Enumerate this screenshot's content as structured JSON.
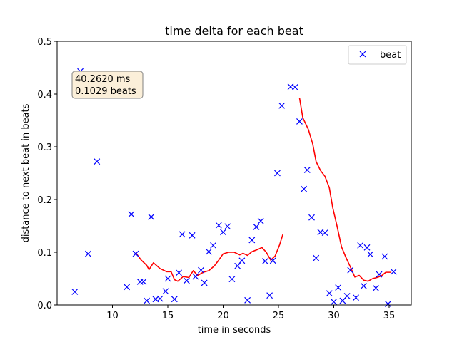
{
  "chart_data": {
    "type": "scatter",
    "title": "time delta for each beat",
    "xlabel": "time in seconds",
    "ylabel": "distance to next beat in beats",
    "xlim": [
      5.0,
      37.0
    ],
    "ylim": [
      0.0,
      0.5
    ],
    "xticks": [
      10,
      15,
      20,
      25,
      30,
      35
    ],
    "xtick_labels": [
      "10",
      "15",
      "20",
      "25",
      "30",
      "35"
    ],
    "yticks": [
      0.0,
      0.1,
      0.2,
      0.3,
      0.4,
      0.5
    ],
    "ytick_labels": [
      "0.0",
      "0.1",
      "0.2",
      "0.3",
      "0.4",
      "0.5"
    ],
    "grid": false,
    "legend": {
      "position": "top-right",
      "entries": [
        "beat"
      ]
    },
    "annotation": {
      "line1": "40.2620 ms",
      "line2": "0.1029 beats",
      "position": "top-left"
    },
    "series": [
      {
        "name": "beat",
        "kind": "scatter",
        "marker": "x",
        "color": "#0000ff",
        "points": [
          [
            6.6,
            0.025
          ],
          [
            7.1,
            0.443
          ],
          [
            7.8,
            0.097
          ],
          [
            8.6,
            0.272
          ],
          [
            11.3,
            0.034
          ],
          [
            11.7,
            0.172
          ],
          [
            12.1,
            0.097
          ],
          [
            12.5,
            0.044
          ],
          [
            12.8,
            0.044
          ],
          [
            13.1,
            0.008
          ],
          [
            13.5,
            0.167
          ],
          [
            13.9,
            0.011
          ],
          [
            14.3,
            0.012
          ],
          [
            14.8,
            0.026
          ],
          [
            15.0,
            0.05
          ],
          [
            15.6,
            0.011
          ],
          [
            16.0,
            0.061
          ],
          [
            16.3,
            0.134
          ],
          [
            16.7,
            0.046
          ],
          [
            17.2,
            0.132
          ],
          [
            17.5,
            0.054
          ],
          [
            18.0,
            0.066
          ],
          [
            18.3,
            0.042
          ],
          [
            18.7,
            0.101
          ],
          [
            19.1,
            0.113
          ],
          [
            19.6,
            0.151
          ],
          [
            20.0,
            0.138
          ],
          [
            20.4,
            0.149
          ],
          [
            20.8,
            0.049
          ],
          [
            21.3,
            0.074
          ],
          [
            21.7,
            0.084
          ],
          [
            22.2,
            0.009
          ],
          [
            22.6,
            0.123
          ],
          [
            23.0,
            0.148
          ],
          [
            23.4,
            0.159
          ],
          [
            23.8,
            0.083
          ],
          [
            24.2,
            0.018
          ],
          [
            24.5,
            0.084
          ],
          [
            24.9,
            0.25
          ],
          [
            25.3,
            0.378
          ],
          [
            26.1,
            0.414
          ],
          [
            26.5,
            0.413
          ],
          [
            26.9,
            0.348
          ],
          [
            27.3,
            0.22
          ],
          [
            27.6,
            0.256
          ],
          [
            28.0,
            0.166
          ],
          [
            28.4,
            0.089
          ],
          [
            28.8,
            0.138
          ],
          [
            29.2,
            0.137
          ],
          [
            29.6,
            0.022
          ],
          [
            30.0,
            0.006
          ],
          [
            30.4,
            0.033
          ],
          [
            30.8,
            0.008
          ],
          [
            31.2,
            0.017
          ],
          [
            31.5,
            0.066
          ],
          [
            32.0,
            0.014
          ],
          [
            32.4,
            0.113
          ],
          [
            32.7,
            0.036
          ],
          [
            33.0,
            0.109
          ],
          [
            33.3,
            0.096
          ],
          [
            33.8,
            0.032
          ],
          [
            34.1,
            0.058
          ],
          [
            34.6,
            0.092
          ],
          [
            34.9,
            0.002
          ],
          [
            35.4,
            0.063
          ]
        ]
      },
      {
        "name": "",
        "kind": "line",
        "color": "#ff0000",
        "segments": [
          [
            [
              12.1,
              0.099
            ],
            [
              12.6,
              0.085
            ],
            [
              13.1,
              0.075
            ],
            [
              13.3,
              0.067
            ],
            [
              13.7,
              0.08
            ],
            [
              14.3,
              0.069
            ],
            [
              14.9,
              0.063
            ],
            [
              15.3,
              0.063
            ],
            [
              15.6,
              0.048
            ],
            [
              15.9,
              0.045
            ],
            [
              16.4,
              0.054
            ],
            [
              16.9,
              0.052
            ],
            [
              17.3,
              0.065
            ],
            [
              17.7,
              0.056
            ],
            [
              18.2,
              0.062
            ],
            [
              18.7,
              0.065
            ],
            [
              19.2,
              0.074
            ],
            [
              19.6,
              0.085
            ],
            [
              20.0,
              0.097
            ],
            [
              20.5,
              0.1
            ],
            [
              21.0,
              0.1
            ],
            [
              21.5,
              0.095
            ],
            [
              21.8,
              0.098
            ],
            [
              22.2,
              0.094
            ],
            [
              22.6,
              0.101
            ],
            [
              23.1,
              0.105
            ],
            [
              23.5,
              0.109
            ],
            [
              23.9,
              0.1
            ],
            [
              24.3,
              0.085
            ],
            [
              24.7,
              0.093
            ],
            [
              25.1,
              0.114
            ],
            [
              25.4,
              0.134
            ]
          ],
          [
            [
              26.9,
              0.393
            ],
            [
              27.2,
              0.355
            ],
            [
              27.7,
              0.333
            ],
            [
              28.1,
              0.305
            ],
            [
              28.4,
              0.272
            ],
            [
              28.8,
              0.255
            ],
            [
              29.2,
              0.244
            ],
            [
              29.6,
              0.222
            ],
            [
              29.9,
              0.185
            ],
            [
              30.3,
              0.149
            ],
            [
              30.7,
              0.11
            ],
            [
              31.1,
              0.09
            ],
            [
              31.5,
              0.072
            ],
            [
              31.9,
              0.053
            ],
            [
              32.3,
              0.056
            ],
            [
              32.7,
              0.047
            ],
            [
              33.1,
              0.045
            ],
            [
              33.5,
              0.05
            ],
            [
              33.9,
              0.052
            ],
            [
              34.3,
              0.055
            ],
            [
              34.7,
              0.062
            ],
            [
              35.2,
              0.062
            ]
          ]
        ]
      }
    ]
  }
}
